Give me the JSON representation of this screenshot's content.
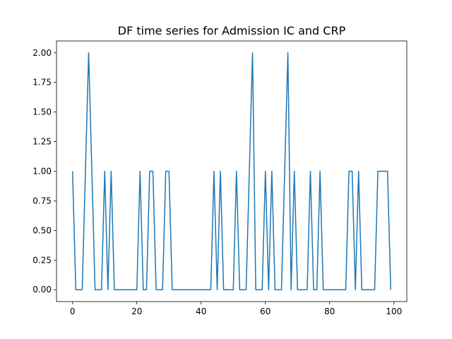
{
  "chart_data": {
    "type": "line",
    "title": "DF time series for Admission IC and CRP",
    "xlabel": "",
    "ylabel": "",
    "xlim": [
      -5,
      104
    ],
    "ylim": [
      -0.1,
      2.1
    ],
    "xticks": [
      0,
      20,
      40,
      60,
      80,
      100
    ],
    "yticks": [
      0.0,
      0.25,
      0.5,
      0.75,
      1.0,
      1.25,
      1.5,
      1.75,
      2.0
    ],
    "ytick_labels": [
      "0.00",
      "0.25",
      "0.50",
      "0.75",
      "1.00",
      "1.25",
      "1.50",
      "1.75",
      "2.00"
    ],
    "xtick_labels": [
      "0",
      "20",
      "40",
      "60",
      "80",
      "100"
    ],
    "grid": false,
    "series": [
      {
        "color": "#1f77b4",
        "x": [
          0,
          1,
          2,
          3,
          4,
          5,
          6,
          7,
          8,
          9,
          10,
          11,
          12,
          13,
          14,
          15,
          16,
          17,
          18,
          19,
          20,
          21,
          22,
          23,
          24,
          25,
          26,
          27,
          28,
          29,
          30,
          31,
          32,
          33,
          34,
          35,
          36,
          37,
          38,
          39,
          40,
          41,
          42,
          43,
          44,
          45,
          46,
          47,
          48,
          49,
          50,
          51,
          52,
          53,
          54,
          55,
          56,
          57,
          58,
          59,
          60,
          61,
          62,
          63,
          64,
          65,
          66,
          67,
          68,
          69,
          70,
          71,
          72,
          73,
          74,
          75,
          76,
          77,
          78,
          79,
          80,
          81,
          82,
          83,
          84,
          85,
          86,
          87,
          88,
          89,
          90,
          91,
          92,
          93,
          94,
          95,
          96,
          97,
          98,
          99
        ],
        "values": [
          1,
          0,
          0,
          0,
          1,
          2,
          1,
          0,
          0,
          0,
          1,
          0,
          1,
          0,
          0,
          0,
          0,
          0,
          0,
          0,
          0,
          1,
          0,
          0,
          1,
          1,
          0,
          0,
          0,
          1,
          1,
          0,
          0,
          0,
          0,
          0,
          0,
          0,
          0,
          0,
          0,
          0,
          0,
          0,
          1,
          0,
          1,
          0,
          0,
          0,
          0,
          1,
          0,
          0,
          0,
          1,
          2,
          0,
          0,
          0,
          1,
          0,
          1,
          0,
          0,
          0,
          1,
          2,
          0,
          1,
          0,
          0,
          0,
          0,
          1,
          0,
          0,
          1,
          0,
          0,
          0,
          0,
          0,
          0,
          0,
          0,
          1,
          1,
          0,
          1,
          0,
          0,
          0,
          0,
          0,
          1,
          1,
          1,
          1,
          0
        ]
      }
    ]
  }
}
